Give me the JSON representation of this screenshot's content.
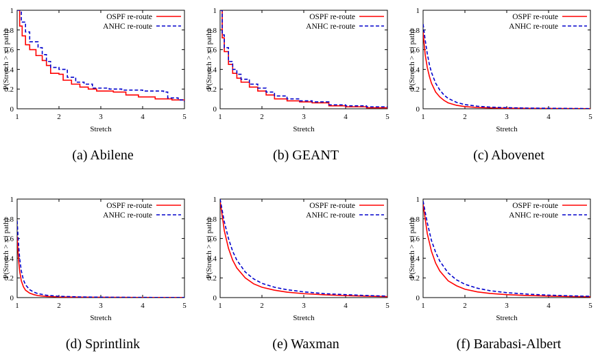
{
  "figure": {
    "panels": [
      {
        "caption_tag": "(a)",
        "caption_name": "Abilene"
      },
      {
        "caption_tag": "(b)",
        "caption_name": "GEANT"
      },
      {
        "caption_tag": "(c)",
        "caption_name": "Abovenet"
      },
      {
        "caption_tag": "(d)",
        "caption_name": "Sprintlink"
      },
      {
        "caption_tag": "(e)",
        "caption_name": "Waxman"
      },
      {
        "caption_tag": "(f)",
        "caption_name": "Barabasi-Albert"
      }
    ]
  },
  "colors": {
    "ospf": "#ff0000",
    "anhc": "#0000cc"
  },
  "chart_data": [
    {
      "type": "line",
      "step": true,
      "xlabel": "Stretch",
      "ylabel": "P(Stretch > x | path)",
      "xlim": [
        1,
        5
      ],
      "ylim": [
        0,
        1
      ],
      "xticks": [
        "1",
        "2",
        "3",
        "4",
        "5"
      ],
      "yticks": [
        "0",
        "0.2",
        "0.4",
        "0.6",
        "0.8",
        "1"
      ],
      "legend_position": "top-right",
      "series": [
        {
          "name": "OSPF re-route",
          "style": "solid",
          "x": [
            1,
            1.06,
            1.12,
            1.2,
            1.3,
            1.45,
            1.6,
            1.7,
            1.8,
            2.0,
            2.1,
            2.3,
            2.5,
            2.7,
            2.9,
            3.3,
            3.6,
            3.9,
            4.3,
            4.7,
            5
          ],
          "y": [
            1,
            0.84,
            0.74,
            0.65,
            0.6,
            0.54,
            0.49,
            0.44,
            0.36,
            0.35,
            0.29,
            0.25,
            0.22,
            0.2,
            0.18,
            0.17,
            0.14,
            0.12,
            0.1,
            0.09,
            0.08
          ]
        },
        {
          "name": "ANHC re-route",
          "style": "dashed",
          "x": [
            1,
            1.1,
            1.2,
            1.3,
            1.5,
            1.6,
            1.7,
            1.8,
            2.0,
            2.2,
            2.4,
            2.6,
            2.8,
            3.2,
            3.5,
            4.0,
            4.5,
            4.6,
            4.85,
            5
          ],
          "y": [
            1,
            0.88,
            0.78,
            0.68,
            0.62,
            0.55,
            0.48,
            0.42,
            0.4,
            0.32,
            0.27,
            0.25,
            0.21,
            0.2,
            0.19,
            0.18,
            0.17,
            0.11,
            0.09,
            0.07
          ]
        }
      ]
    },
    {
      "type": "line",
      "step": true,
      "xlabel": "Stretch",
      "ylabel": "P(Stretch > x | path)",
      "xlim": [
        1,
        5
      ],
      "ylim": [
        0,
        1
      ],
      "xticks": [
        "1",
        "2",
        "3",
        "4",
        "5"
      ],
      "yticks": [
        "0",
        "0.2",
        "0.4",
        "0.6",
        "0.8",
        "1"
      ],
      "legend_position": "top-right",
      "series": [
        {
          "name": "OSPF re-route",
          "style": "solid",
          "x": [
            1,
            1.05,
            1.1,
            1.2,
            1.3,
            1.4,
            1.5,
            1.7,
            1.9,
            2.1,
            2.3,
            2.6,
            2.9,
            3.2,
            3.6,
            4.0,
            4.5,
            5
          ],
          "y": [
            1,
            0.72,
            0.58,
            0.45,
            0.36,
            0.31,
            0.27,
            0.22,
            0.18,
            0.14,
            0.1,
            0.08,
            0.07,
            0.06,
            0.03,
            0.02,
            0.01,
            0.01
          ]
        },
        {
          "name": "ANHC re-route",
          "style": "dashed",
          "x": [
            1,
            1.05,
            1.1,
            1.2,
            1.3,
            1.4,
            1.5,
            1.7,
            1.9,
            2.1,
            2.3,
            2.6,
            2.9,
            3.2,
            3.6,
            4.0,
            4.5,
            5
          ],
          "y": [
            1,
            0.75,
            0.62,
            0.48,
            0.4,
            0.35,
            0.3,
            0.25,
            0.21,
            0.17,
            0.13,
            0.1,
            0.08,
            0.07,
            0.04,
            0.03,
            0.02,
            0.01
          ]
        }
      ]
    },
    {
      "type": "line",
      "step": false,
      "xlabel": "Stretch",
      "ylabel": "P(Stretch > x | path)",
      "xlim": [
        1,
        5
      ],
      "ylim": [
        0,
        1
      ],
      "xticks": [
        "1",
        "2",
        "3",
        "4",
        "5"
      ],
      "yticks": [
        "0",
        "0.2",
        "0.4",
        "0.6",
        "0.8",
        "1"
      ],
      "legend_position": "top-right",
      "series": [
        {
          "name": "OSPF re-route",
          "style": "solid",
          "x": [
            1,
            1.05,
            1.1,
            1.15,
            1.2,
            1.3,
            1.4,
            1.5,
            1.6,
            1.8,
            2.0,
            2.3,
            2.6,
            3.0,
            3.5,
            4.0,
            5
          ],
          "y": [
            0.78,
            0.55,
            0.42,
            0.33,
            0.26,
            0.17,
            0.12,
            0.085,
            0.06,
            0.035,
            0.022,
            0.013,
            0.009,
            0.006,
            0.004,
            0.003,
            0.001
          ]
        },
        {
          "name": "ANHC re-route",
          "style": "dashed",
          "x": [
            1,
            1.05,
            1.1,
            1.15,
            1.2,
            1.3,
            1.4,
            1.5,
            1.6,
            1.8,
            2.0,
            2.3,
            2.6,
            3.0,
            3.5,
            4.0,
            5
          ],
          "y": [
            0.86,
            0.7,
            0.56,
            0.45,
            0.37,
            0.26,
            0.19,
            0.14,
            0.105,
            0.065,
            0.042,
            0.026,
            0.017,
            0.011,
            0.007,
            0.005,
            0.002
          ]
        }
      ]
    },
    {
      "type": "line",
      "step": false,
      "xlabel": "Stretch",
      "ylabel": "P(Stretch > x | path)",
      "xlim": [
        1,
        5
      ],
      "ylim": [
        0,
        1
      ],
      "xticks": [
        "1",
        "2",
        "3",
        "4",
        "5"
      ],
      "yticks": [
        "0",
        "0.2",
        "0.4",
        "0.6",
        "0.8",
        "1"
      ],
      "legend_position": "top-right",
      "series": [
        {
          "name": "OSPF re-route",
          "style": "solid",
          "x": [
            1,
            1.03,
            1.06,
            1.1,
            1.15,
            1.2,
            1.3,
            1.4,
            1.5,
            1.7,
            2.0,
            2.5,
            3.0,
            4.0,
            5
          ],
          "y": [
            0.62,
            0.4,
            0.27,
            0.17,
            0.11,
            0.075,
            0.045,
            0.03,
            0.02,
            0.012,
            0.007,
            0.004,
            0.003,
            0.001,
            0.001
          ]
        },
        {
          "name": "ANHC re-route",
          "style": "dashed",
          "x": [
            1,
            1.03,
            1.06,
            1.1,
            1.15,
            1.2,
            1.3,
            1.4,
            1.5,
            1.7,
            2.0,
            2.5,
            3.0,
            4.0,
            5
          ],
          "y": [
            0.78,
            0.56,
            0.4,
            0.27,
            0.18,
            0.13,
            0.08,
            0.055,
            0.04,
            0.024,
            0.013,
            0.007,
            0.004,
            0.002,
            0.001
          ]
        }
      ]
    },
    {
      "type": "line",
      "step": false,
      "xlabel": "Stretch",
      "ylabel": "P(Stretch > x | path)",
      "xlim": [
        1,
        5
      ],
      "ylim": [
        0,
        1
      ],
      "xticks": [
        "1",
        "2",
        "3",
        "4",
        "5"
      ],
      "yticks": [
        "0",
        "0.2",
        "0.4",
        "0.6",
        "0.8",
        "1"
      ],
      "legend_position": "top-right",
      "series": [
        {
          "name": "OSPF re-route",
          "style": "solid",
          "x": [
            1,
            1.1,
            1.2,
            1.3,
            1.4,
            1.6,
            1.8,
            2.0,
            2.3,
            2.6,
            3.0,
            3.5,
            4.0,
            4.5,
            5
          ],
          "y": [
            0.98,
            0.68,
            0.5,
            0.38,
            0.3,
            0.2,
            0.14,
            0.105,
            0.075,
            0.055,
            0.04,
            0.028,
            0.02,
            0.014,
            0.01
          ]
        },
        {
          "name": "ANHC re-route",
          "style": "dashed",
          "x": [
            1,
            1.1,
            1.2,
            1.3,
            1.4,
            1.6,
            1.8,
            2.0,
            2.3,
            2.6,
            3.0,
            3.5,
            4.0,
            4.5,
            5
          ],
          "y": [
            1.0,
            0.77,
            0.6,
            0.47,
            0.38,
            0.26,
            0.19,
            0.145,
            0.105,
            0.08,
            0.058,
            0.04,
            0.03,
            0.021,
            0.015
          ]
        }
      ]
    },
    {
      "type": "line",
      "step": false,
      "xlabel": "Stretch",
      "ylabel": "P(Stretch > x | path)",
      "xlim": [
        1,
        5
      ],
      "ylim": [
        0,
        1
      ],
      "xticks": [
        "1",
        "2",
        "3",
        "4",
        "5"
      ],
      "yticks": [
        "0",
        "0.2",
        "0.4",
        "0.6",
        "0.8",
        "1"
      ],
      "legend_position": "top-right",
      "series": [
        {
          "name": "OSPF re-route",
          "style": "solid",
          "x": [
            1,
            1.1,
            1.2,
            1.3,
            1.4,
            1.6,
            1.8,
            2.0,
            2.3,
            2.6,
            3.0,
            3.5,
            4.0,
            4.5,
            5
          ],
          "y": [
            0.95,
            0.65,
            0.47,
            0.35,
            0.27,
            0.17,
            0.12,
            0.085,
            0.058,
            0.042,
            0.03,
            0.021,
            0.015,
            0.011,
            0.008
          ]
        },
        {
          "name": "ANHC re-route",
          "style": "dashed",
          "x": [
            1,
            1.1,
            1.2,
            1.3,
            1.4,
            1.6,
            1.8,
            2.0,
            2.3,
            2.6,
            3.0,
            3.5,
            4.0,
            4.5,
            5
          ],
          "y": [
            0.98,
            0.76,
            0.58,
            0.46,
            0.37,
            0.25,
            0.18,
            0.135,
            0.095,
            0.07,
            0.05,
            0.035,
            0.025,
            0.018,
            0.013
          ]
        }
      ]
    }
  ]
}
